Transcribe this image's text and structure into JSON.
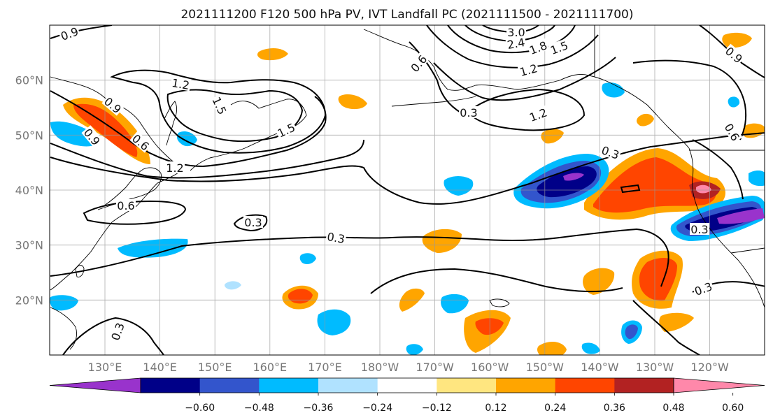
{
  "title": "2021111200 F120 500 hPa PV, IVT Landfall PC (2021111500 - 2021111700)",
  "map": {
    "lon_range": [
      120,
      -111
    ],
    "lat_range": [
      10,
      70
    ],
    "x_ticks": [
      "130°E",
      "140°E",
      "150°E",
      "160°E",
      "170°E",
      "180°W",
      "170°W",
      "160°W",
      "150°W",
      "140°W",
      "130°W",
      "120°W"
    ],
    "y_ticks": [
      "20°N",
      "30°N",
      "40°N",
      "50°N",
      "60°N"
    ],
    "grid": true,
    "contour_labels": [
      "0.9",
      "1.2",
      "1.5",
      "1.5",
      "1.2",
      "3.0",
      "2.4",
      "1.8",
      "1.5",
      "0.6",
      "1.2",
      "1.2",
      "0.9",
      "0.9",
      "0.6",
      "0.9",
      "0.3",
      "0.6",
      "0.3",
      "0.3",
      "0.3",
      "0.3",
      "0.3",
      "0.3",
      "0.6"
    ]
  },
  "colorbar": {
    "ticks": [
      "−0.60",
      "−0.48",
      "−0.36",
      "−0.24",
      "−0.12",
      "0.12",
      "0.24",
      "0.36",
      "0.48",
      "0.60"
    ],
    "colors": [
      "#9933cc",
      "#000088",
      "#3355cc",
      "#00bbff",
      "#b0e2ff",
      "#ffffff",
      "#ffe680",
      "#ffa500",
      "#ff4500",
      "#b22222",
      "#ff88aa"
    ]
  },
  "colors": {
    "land_outline": "#000000",
    "grid": "#999999"
  }
}
